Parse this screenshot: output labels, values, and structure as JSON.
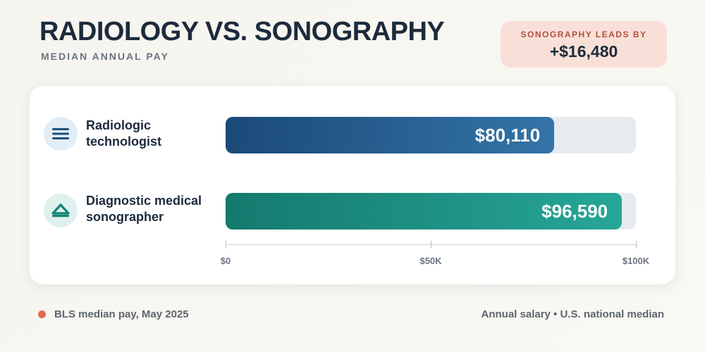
{
  "header": {
    "title": "RADIOLOGY VS. SONOGRAPHY",
    "subtitle": "MEDIAN ANNUAL PAY"
  },
  "callout": {
    "label": "SONOGRAPHY LEADS BY",
    "value": "+$16,480",
    "background": "#f8e0d8",
    "label_color": "#b04f3a"
  },
  "chart_data": {
    "type": "bar",
    "orientation": "horizontal",
    "categories": [
      "Radiologic technologist",
      "Diagnostic medical sonographer"
    ],
    "values": [
      80110,
      96590
    ],
    "value_labels": [
      "$80,110",
      "$96,590"
    ],
    "xlim": [
      0,
      100000
    ],
    "ticks": [
      {
        "value": 0,
        "label": "$0"
      },
      {
        "value": 50000,
        "label": "$50K"
      },
      {
        "value": 100000,
        "label": "$100K"
      }
    ],
    "colors": [
      {
        "from": "#1b4a78",
        "to": "#3474a8"
      },
      {
        "from": "#147a6e",
        "to": "#27a697"
      }
    ],
    "icons": [
      "menu-lines-icon",
      "probe-dome-icon"
    ],
    "grid": false,
    "legend": "none"
  },
  "footer": {
    "source": "BLS median pay, May 2025",
    "note": "Annual salary • U.S. national median",
    "dot_color": "#e06a4f"
  }
}
